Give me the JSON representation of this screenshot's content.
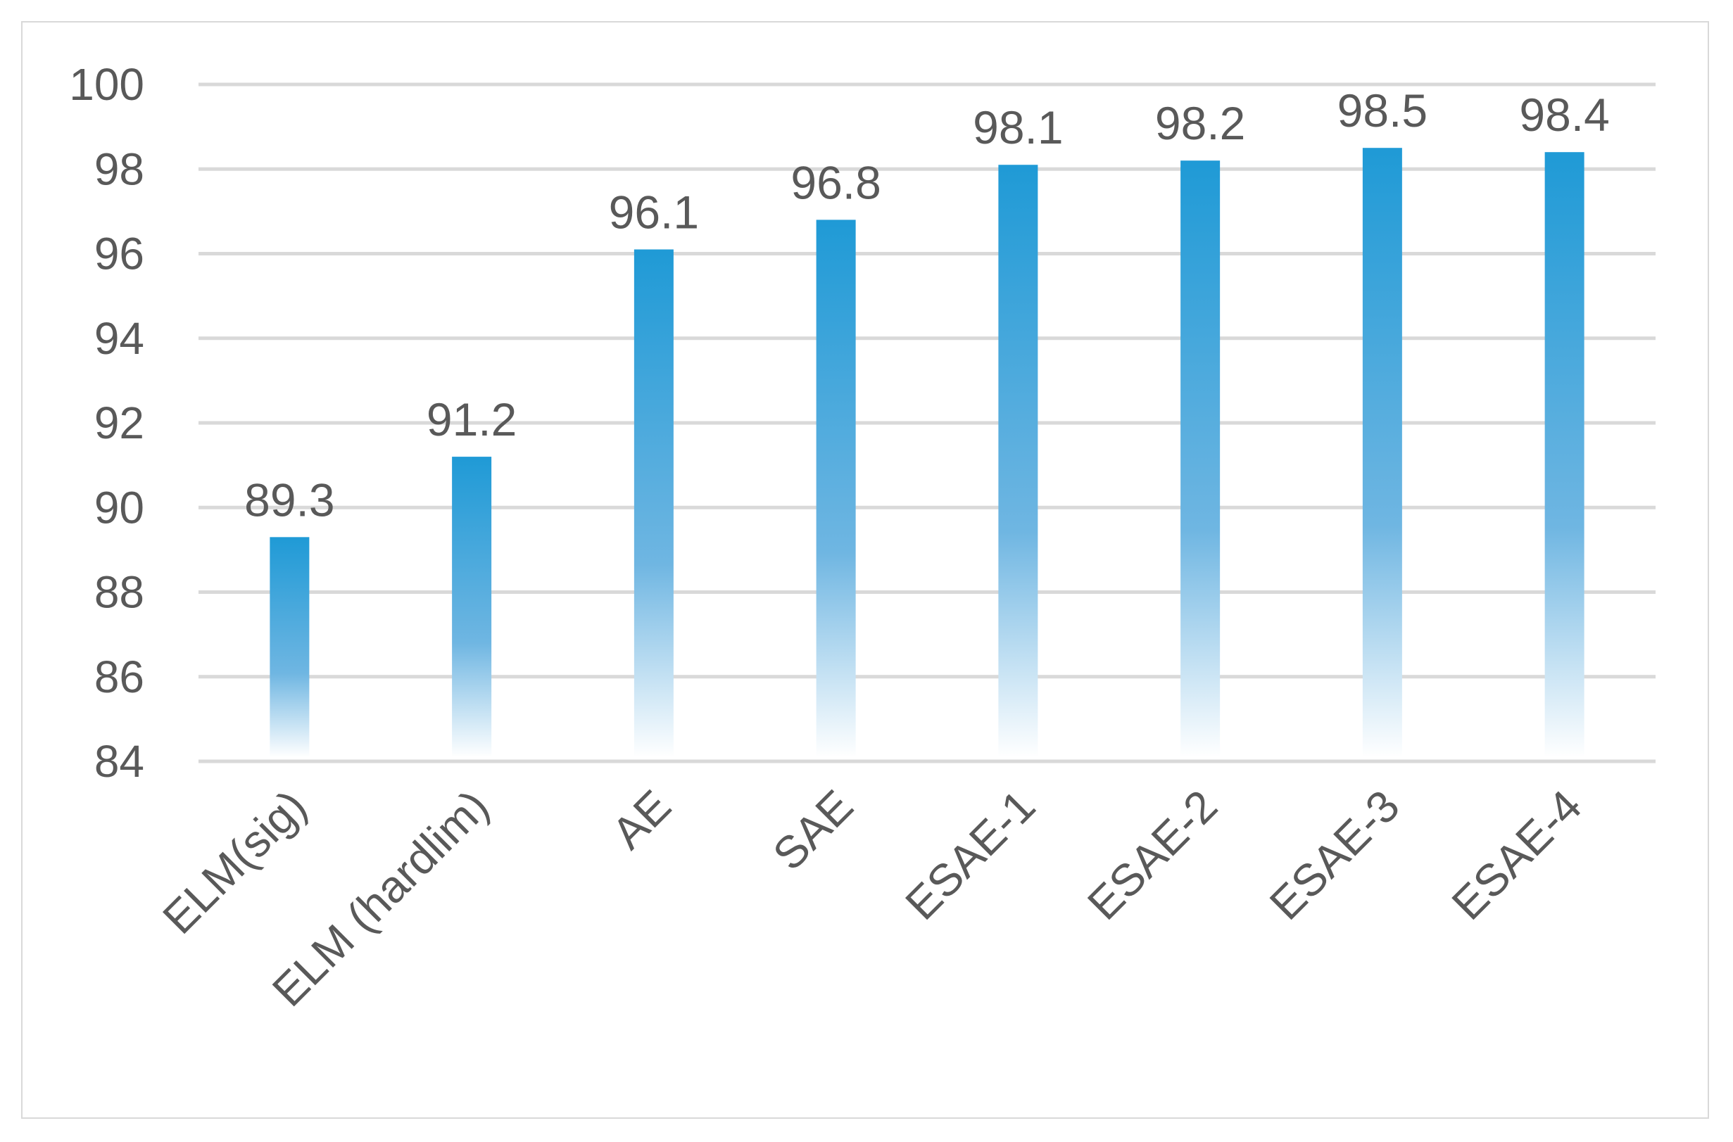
{
  "chart_data": {
    "type": "bar",
    "categories": [
      "ELM(sig)",
      "ELM (hardlim)",
      "AE",
      "SAE",
      "ESAE-1",
      "ESAE-2",
      "ESAE-3",
      "ESAE-4"
    ],
    "values": [
      89.3,
      91.2,
      96.1,
      96.8,
      98.1,
      98.2,
      98.5,
      98.4
    ],
    "data_labels": [
      "89.3",
      "91.2",
      "96.1",
      "96.8",
      "98.1",
      "98.2",
      "98.5",
      "98.4"
    ],
    "y_ticks": [
      84,
      86,
      88,
      90,
      92,
      94,
      96,
      98,
      100
    ],
    "ylim": [
      84,
      100
    ],
    "title": "",
    "xlabel": "",
    "ylabel": "",
    "grid": true,
    "legend": "none",
    "colors": {
      "bar_top": "#1f9ad6",
      "bar_mid": "#6fb6e2",
      "bar_bottom": "#ffffff",
      "grid": "#d9d9d9",
      "text": "#595959",
      "frame": "#d9d9d9"
    }
  }
}
